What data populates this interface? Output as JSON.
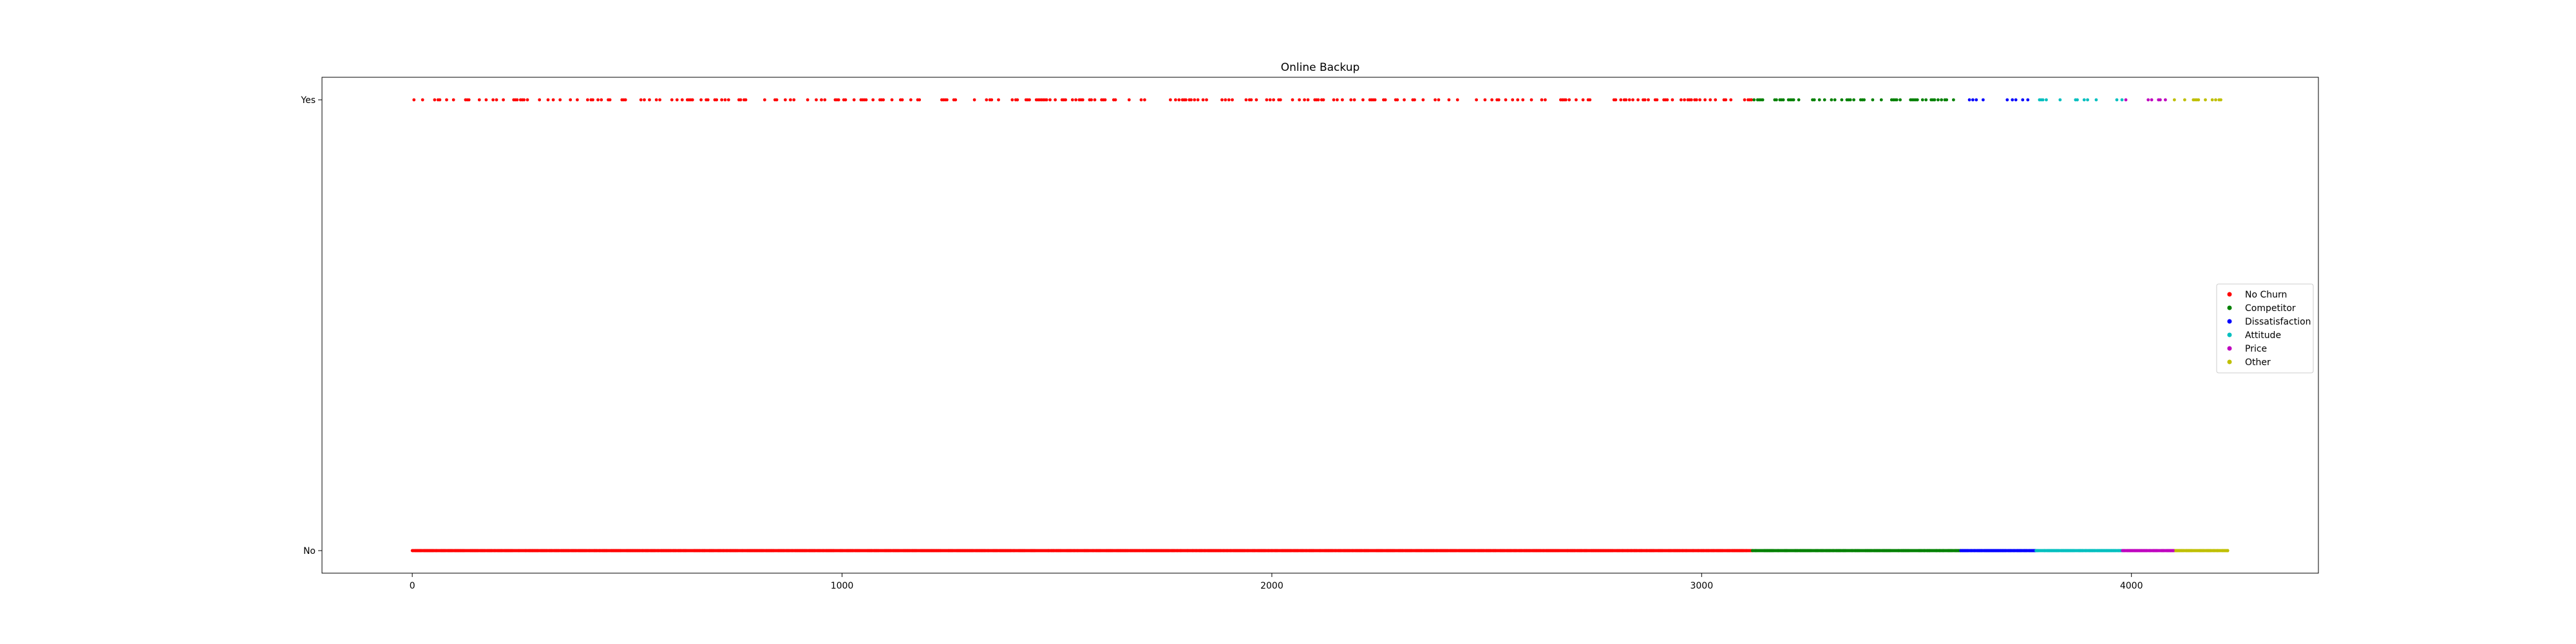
{
  "chart_data": {
    "type": "scatter",
    "title": "Online Backup",
    "xlabel": "",
    "ylabel": "",
    "xlim": [
      -210,
      4435
    ],
    "x_ticks": [
      0,
      1000,
      2000,
      3000,
      4000
    ],
    "y_categories": [
      "No",
      "Yes"
    ],
    "grid": false,
    "legend_position": "center-right",
    "series": [
      {
        "name": "No Churn",
        "color": "#ff0000",
        "x_range": [
          0,
          3118
        ],
        "yes_density": 0.65
      },
      {
        "name": "Competitor",
        "color": "#008000",
        "x_range": [
          3118,
          3603
        ],
        "yes_density": 0.7
      },
      {
        "name": "Dissatisfaction",
        "color": "#0000ff",
        "x_range": [
          3603,
          3778
        ],
        "yes_density": 0.55
      },
      {
        "name": "Attitude",
        "color": "#00bfbf",
        "x_range": [
          3778,
          3979
        ],
        "yes_density": 0.5
      },
      {
        "name": "Price",
        "color": "#bf00bf",
        "x_range": [
          3979,
          4100
        ],
        "yes_density": 0.55
      },
      {
        "name": "Other",
        "color": "#bfbf00",
        "x_range": [
          4100,
          4226
        ],
        "yes_density": 0.5
      }
    ]
  }
}
